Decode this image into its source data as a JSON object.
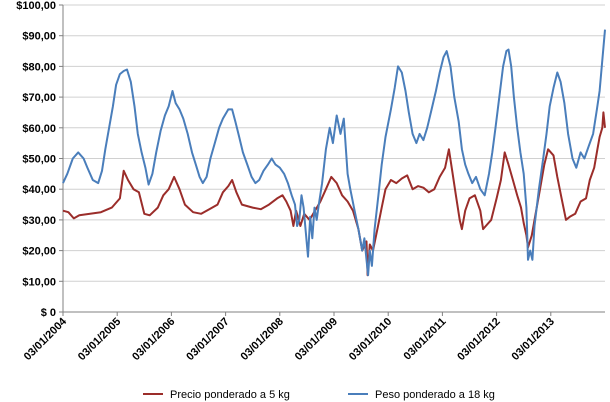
{
  "chart_data": {
    "type": "line",
    "title": "",
    "xlabel": "",
    "ylabel": "",
    "ylim": [
      0,
      100
    ],
    "yticks": [
      "$ 0",
      "$10,00",
      "$20,00",
      "$30,00",
      "$40,00",
      "$50,00",
      "$60,00",
      "$70,00",
      "$80,00",
      "$90,00",
      "$100,00"
    ],
    "xlim": [
      2004.0,
      2014.0
    ],
    "xticks": [
      "03/01/2004",
      "03/01/2005",
      "03/01/2006",
      "03/01/2007",
      "03/01/2008",
      "03/01/2009",
      "03/01/2010",
      "03/01/2011",
      "03/01/2012",
      "03/01/2013"
    ],
    "grid": "horizontal",
    "legend_position": "bottom",
    "series": [
      {
        "name": "Precio ponderado a 5 kg",
        "color": "#9b2d2a",
        "points": [
          [
            2004.0,
            33
          ],
          [
            2004.1,
            32.5
          ],
          [
            2004.2,
            30.5
          ],
          [
            2004.3,
            31.5
          ],
          [
            2004.5,
            32
          ],
          [
            2004.7,
            32.5
          ],
          [
            2004.9,
            34
          ],
          [
            2005.05,
            37
          ],
          [
            2005.12,
            46
          ],
          [
            2005.2,
            43
          ],
          [
            2005.3,
            40
          ],
          [
            2005.4,
            39
          ],
          [
            2005.5,
            32
          ],
          [
            2005.6,
            31.5
          ],
          [
            2005.75,
            34
          ],
          [
            2005.85,
            38
          ],
          [
            2005.95,
            40
          ],
          [
            2006.05,
            44
          ],
          [
            2006.15,
            40
          ],
          [
            2006.25,
            35
          ],
          [
            2006.4,
            32.5
          ],
          [
            2006.55,
            32
          ],
          [
            2006.7,
            33.5
          ],
          [
            2006.85,
            35
          ],
          [
            2006.95,
            39
          ],
          [
            2007.05,
            41
          ],
          [
            2007.12,
            43
          ],
          [
            2007.2,
            39
          ],
          [
            2007.3,
            35
          ],
          [
            2007.5,
            34
          ],
          [
            2007.65,
            33.5
          ],
          [
            2007.8,
            35
          ],
          [
            2007.95,
            37
          ],
          [
            2008.05,
            38
          ],
          [
            2008.12,
            36
          ],
          [
            2008.2,
            33
          ],
          [
            2008.25,
            28
          ],
          [
            2008.3,
            33
          ],
          [
            2008.38,
            28
          ],
          [
            2008.45,
            32
          ],
          [
            2008.55,
            30
          ],
          [
            2008.65,
            33
          ],
          [
            2008.75,
            36
          ],
          [
            2008.85,
            40
          ],
          [
            2008.95,
            44
          ],
          [
            2009.05,
            42
          ],
          [
            2009.15,
            38
          ],
          [
            2009.25,
            36
          ],
          [
            2009.35,
            33
          ],
          [
            2009.45,
            27
          ],
          [
            2009.52,
            20
          ],
          [
            2009.6,
            23
          ],
          [
            2009.62,
            12
          ],
          [
            2009.66,
            22
          ],
          [
            2009.72,
            20
          ],
          [
            2009.8,
            27
          ],
          [
            2009.88,
            34
          ],
          [
            2009.95,
            40
          ],
          [
            2010.05,
            43
          ],
          [
            2010.15,
            42
          ],
          [
            2010.25,
            43.5
          ],
          [
            2010.35,
            44.5
          ],
          [
            2010.45,
            40
          ],
          [
            2010.55,
            41
          ],
          [
            2010.65,
            40.5
          ],
          [
            2010.75,
            39
          ],
          [
            2010.85,
            40
          ],
          [
            2010.95,
            44
          ],
          [
            2011.05,
            47
          ],
          [
            2011.12,
            53
          ],
          [
            2011.18,
            46
          ],
          [
            2011.25,
            38
          ],
          [
            2011.32,
            30
          ],
          [
            2011.36,
            27
          ],
          [
            2011.42,
            33
          ],
          [
            2011.5,
            37
          ],
          [
            2011.6,
            38
          ],
          [
            2011.7,
            33
          ],
          [
            2011.75,
            27
          ],
          [
            2011.8,
            28
          ],
          [
            2011.9,
            30
          ],
          [
            2012.0,
            37
          ],
          [
            2012.08,
            43
          ],
          [
            2012.15,
            52
          ],
          [
            2012.22,
            48
          ],
          [
            2012.3,
            43
          ],
          [
            2012.38,
            38
          ],
          [
            2012.45,
            34
          ],
          [
            2012.5,
            29
          ],
          [
            2012.55,
            25
          ],
          [
            2012.58,
            21
          ],
          [
            2012.65,
            25
          ],
          [
            2012.72,
            32
          ],
          [
            2012.8,
            40
          ],
          [
            2012.88,
            48
          ],
          [
            2012.95,
            53
          ],
          [
            2013.05,
            51
          ],
          [
            2013.12,
            44
          ],
          [
            2013.2,
            37
          ],
          [
            2013.28,
            30
          ],
          [
            2013.35,
            31
          ],
          [
            2013.45,
            32
          ],
          [
            2013.55,
            36
          ],
          [
            2013.65,
            37
          ],
          [
            2013.72,
            43
          ],
          [
            2013.8,
            47
          ],
          [
            2013.86,
            53
          ],
          [
            2013.9,
            57
          ],
          [
            2013.95,
            60
          ],
          [
            2013.97,
            65
          ],
          [
            2014.0,
            60
          ]
        ]
      },
      {
        "name": "Peso ponderado a 18 kg",
        "color": "#4a7ebb",
        "points": [
          [
            2004.0,
            42
          ],
          [
            2004.08,
            45
          ],
          [
            2004.18,
            50
          ],
          [
            2004.28,
            52
          ],
          [
            2004.38,
            50
          ],
          [
            2004.45,
            47
          ],
          [
            2004.55,
            43
          ],
          [
            2004.65,
            42
          ],
          [
            2004.72,
            46
          ],
          [
            2004.78,
            53
          ],
          [
            2004.85,
            60
          ],
          [
            2004.92,
            67
          ],
          [
            2004.98,
            74
          ],
          [
            2005.05,
            77.5
          ],
          [
            2005.12,
            78.5
          ],
          [
            2005.18,
            79
          ],
          [
            2005.25,
            75
          ],
          [
            2005.32,
            67
          ],
          [
            2005.38,
            58
          ],
          [
            2005.45,
            52
          ],
          [
            2005.52,
            47
          ],
          [
            2005.58,
            41.5
          ],
          [
            2005.65,
            45
          ],
          [
            2005.72,
            52
          ],
          [
            2005.8,
            59
          ],
          [
            2005.88,
            64
          ],
          [
            2005.95,
            67
          ],
          [
            2006.02,
            72
          ],
          [
            2006.08,
            68
          ],
          [
            2006.15,
            66
          ],
          [
            2006.22,
            63
          ],
          [
            2006.3,
            58
          ],
          [
            2006.38,
            52
          ],
          [
            2006.45,
            48
          ],
          [
            2006.52,
            44
          ],
          [
            2006.58,
            42
          ],
          [
            2006.65,
            44
          ],
          [
            2006.72,
            50
          ],
          [
            2006.8,
            55
          ],
          [
            2006.88,
            60
          ],
          [
            2006.95,
            63
          ],
          [
            2007.05,
            66
          ],
          [
            2007.12,
            66
          ],
          [
            2007.18,
            62
          ],
          [
            2007.25,
            57
          ],
          [
            2007.32,
            52
          ],
          [
            2007.4,
            48
          ],
          [
            2007.48,
            44
          ],
          [
            2007.55,
            42
          ],
          [
            2007.62,
            43
          ],
          [
            2007.7,
            46
          ],
          [
            2007.78,
            48
          ],
          [
            2007.85,
            50
          ],
          [
            2007.92,
            48
          ],
          [
            2008.0,
            47
          ],
          [
            2008.08,
            45
          ],
          [
            2008.15,
            42
          ],
          [
            2008.22,
            38
          ],
          [
            2008.28,
            35
          ],
          [
            2008.32,
            28
          ],
          [
            2008.36,
            30
          ],
          [
            2008.4,
            38
          ],
          [
            2008.44,
            34
          ],
          [
            2008.48,
            26
          ],
          [
            2008.52,
            18
          ],
          [
            2008.56,
            31
          ],
          [
            2008.6,
            24
          ],
          [
            2008.64,
            34
          ],
          [
            2008.68,
            30
          ],
          [
            2008.72,
            35
          ],
          [
            2008.78,
            42
          ],
          [
            2008.85,
            53
          ],
          [
            2008.92,
            60
          ],
          [
            2008.98,
            55
          ],
          [
            2009.05,
            64
          ],
          [
            2009.12,
            58
          ],
          [
            2009.18,
            63
          ],
          [
            2009.25,
            45
          ],
          [
            2009.3,
            40
          ],
          [
            2009.38,
            33
          ],
          [
            2009.45,
            27
          ],
          [
            2009.52,
            20
          ],
          [
            2009.56,
            24
          ],
          [
            2009.6,
            17
          ],
          [
            2009.63,
            12
          ],
          [
            2009.66,
            20
          ],
          [
            2009.7,
            15
          ],
          [
            2009.75,
            27
          ],
          [
            2009.82,
            38
          ],
          [
            2009.88,
            48
          ],
          [
            2009.95,
            57
          ],
          [
            2010.05,
            66
          ],
          [
            2010.12,
            73
          ],
          [
            2010.18,
            80
          ],
          [
            2010.25,
            78
          ],
          [
            2010.32,
            72
          ],
          [
            2010.38,
            65
          ],
          [
            2010.45,
            58
          ],
          [
            2010.52,
            55
          ],
          [
            2010.58,
            58
          ],
          [
            2010.65,
            56
          ],
          [
            2010.72,
            60
          ],
          [
            2010.8,
            66
          ],
          [
            2010.88,
            72
          ],
          [
            2010.95,
            78
          ],
          [
            2011.02,
            83
          ],
          [
            2011.08,
            85
          ],
          [
            2011.15,
            80
          ],
          [
            2011.22,
            70
          ],
          [
            2011.3,
            62
          ],
          [
            2011.36,
            53
          ],
          [
            2011.42,
            48
          ],
          [
            2011.48,
            45
          ],
          [
            2011.55,
            42
          ],
          [
            2011.62,
            44
          ],
          [
            2011.7,
            40
          ],
          [
            2011.78,
            38
          ],
          [
            2011.86,
            45
          ],
          [
            2011.92,
            52
          ],
          [
            2011.98,
            60
          ],
          [
            2012.05,
            70
          ],
          [
            2012.12,
            80
          ],
          [
            2012.18,
            85
          ],
          [
            2012.22,
            85.5
          ],
          [
            2012.27,
            80
          ],
          [
            2012.32,
            70
          ],
          [
            2012.38,
            60
          ],
          [
            2012.44,
            52
          ],
          [
            2012.5,
            45
          ],
          [
            2012.55,
            34
          ],
          [
            2012.58,
            17
          ],
          [
            2012.62,
            20
          ],
          [
            2012.66,
            17
          ],
          [
            2012.7,
            28
          ],
          [
            2012.78,
            40
          ],
          [
            2012.86,
            50
          ],
          [
            2012.92,
            58
          ],
          [
            2012.98,
            67
          ],
          [
            2013.05,
            73
          ],
          [
            2013.12,
            78
          ],
          [
            2013.18,
            75
          ],
          [
            2013.25,
            68
          ],
          [
            2013.32,
            58
          ],
          [
            2013.4,
            50
          ],
          [
            2013.47,
            47
          ],
          [
            2013.55,
            52
          ],
          [
            2013.62,
            50
          ],
          [
            2013.7,
            54
          ],
          [
            2013.78,
            58
          ],
          [
            2013.85,
            66
          ],
          [
            2013.9,
            72
          ],
          [
            2013.95,
            82
          ],
          [
            2014.0,
            92
          ]
        ]
      }
    ]
  }
}
